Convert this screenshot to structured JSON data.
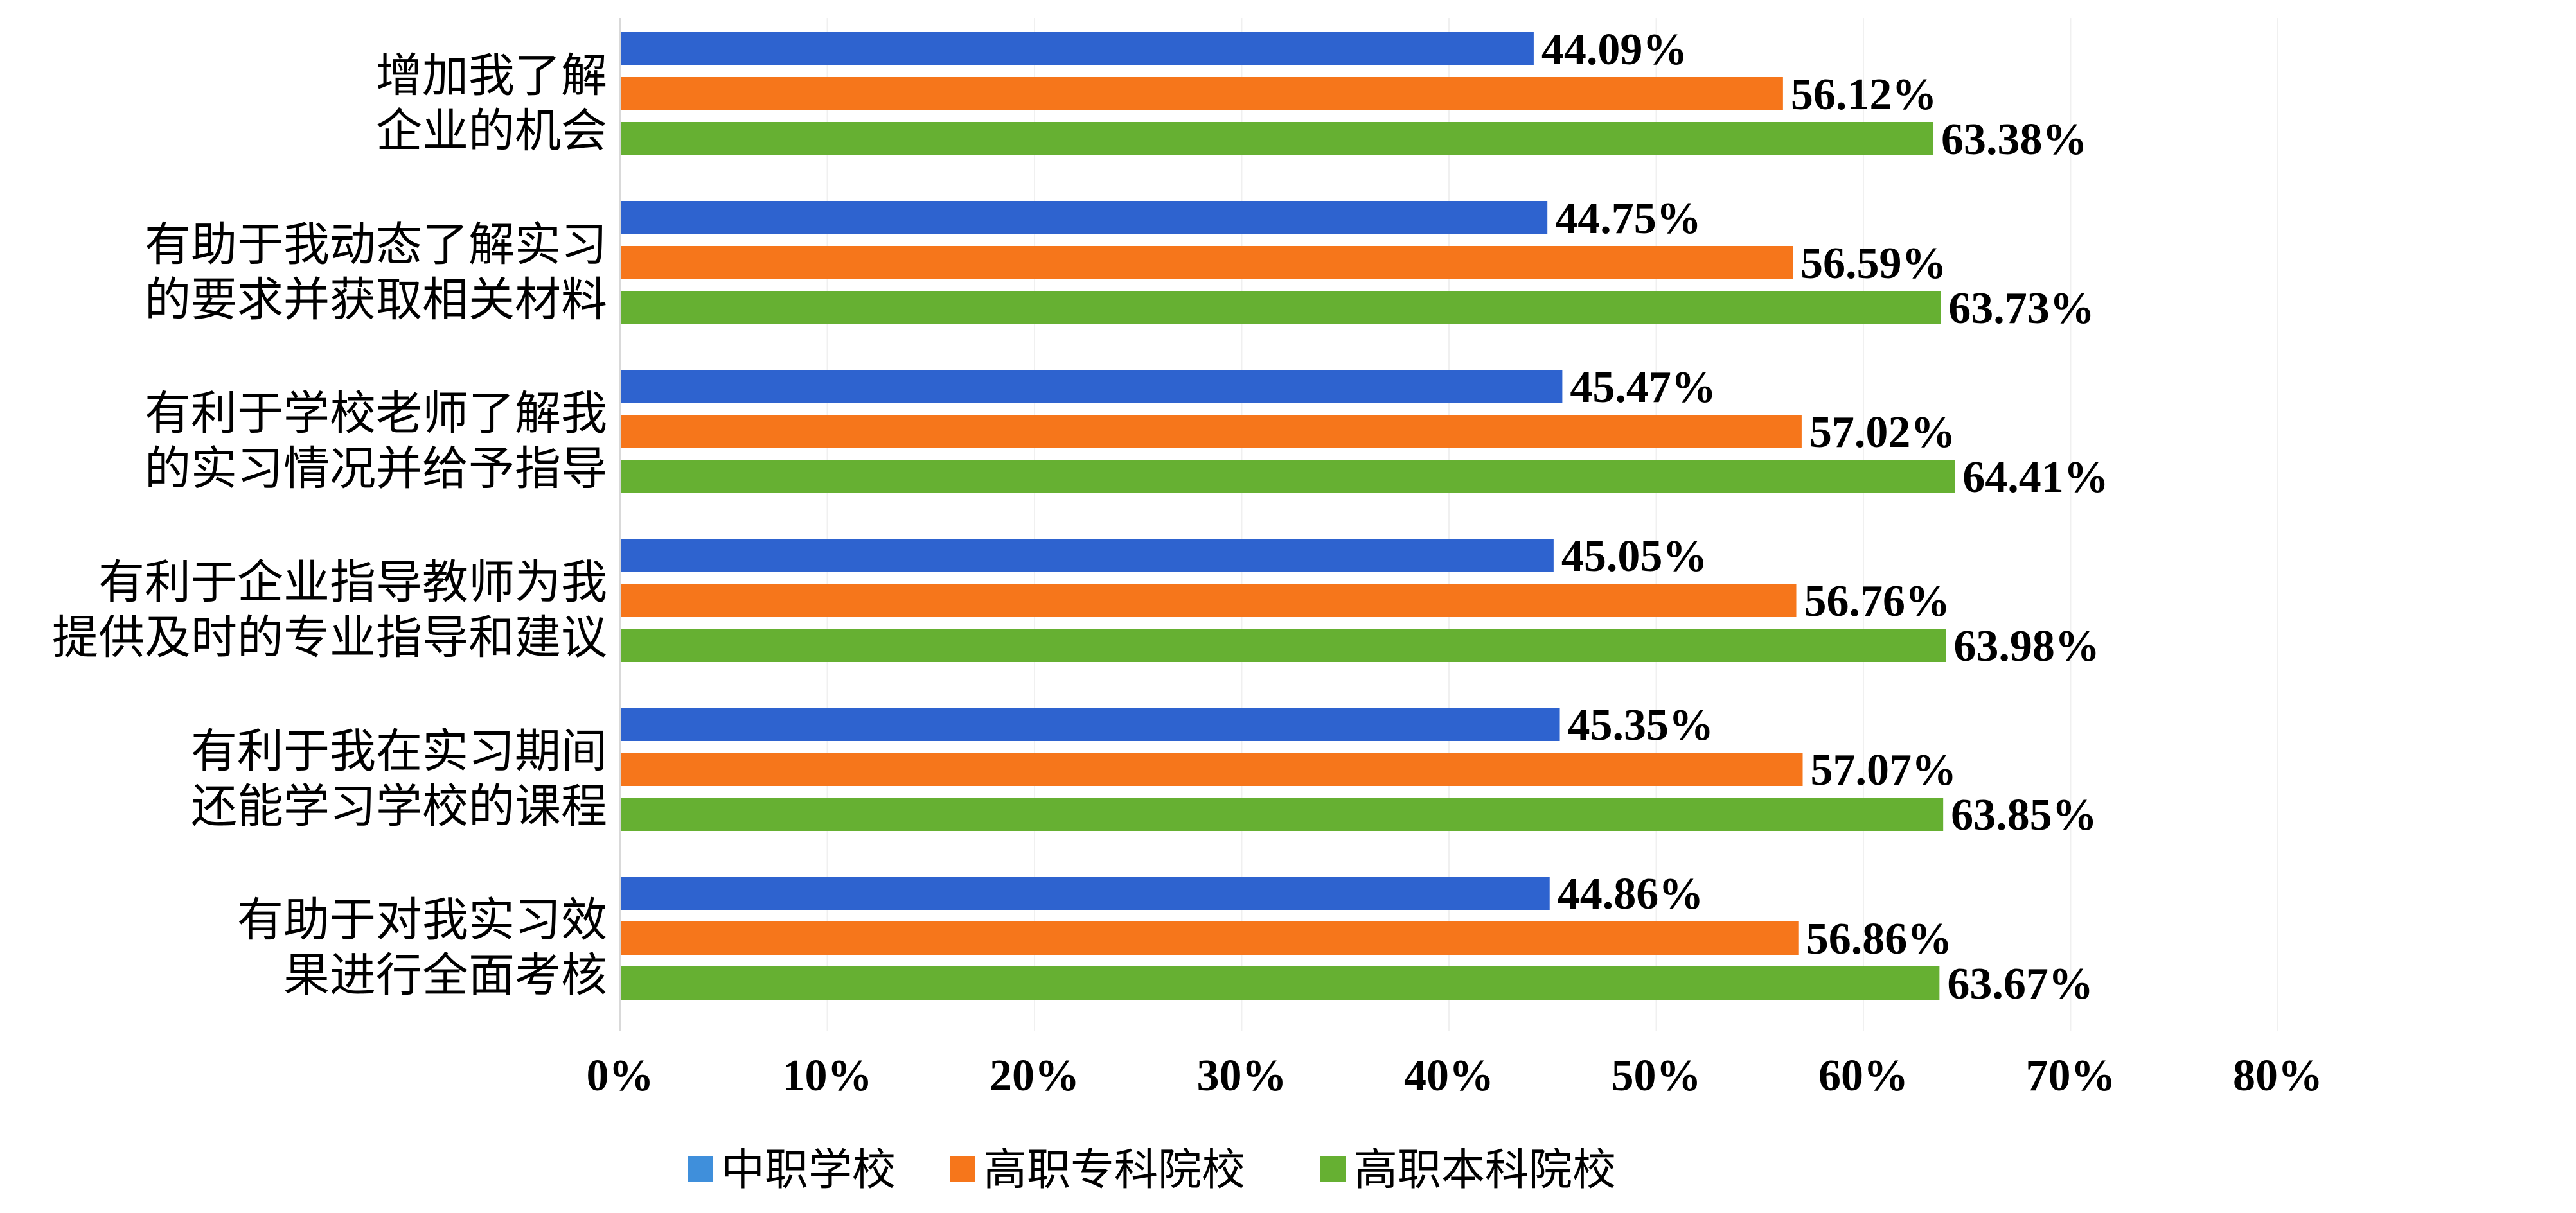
{
  "chart_data": {
    "type": "bar",
    "orientation": "horizontal",
    "categories": [
      [
        "增加我了解",
        "企业的机会"
      ],
      [
        "有助于我动态了解实习",
        "的要求并获取相关材料"
      ],
      [
        "有利于学校老师了解我",
        "的实习情况并给予指导"
      ],
      [
        "有利于企业指导教师为我",
        "提供及时的专业指导和建议"
      ],
      [
        "有利于我在实习期间",
        "还能学习学校的课程"
      ],
      [
        "有助于对我实习效",
        "果进行全面考核"
      ]
    ],
    "series": [
      {
        "name": "中职学校",
        "color": "#2E63CF",
        "legend_color": "#3F8FDB",
        "values": [
          44.09,
          44.75,
          45.47,
          45.05,
          45.35,
          44.86
        ]
      },
      {
        "name": "高职专科院校",
        "color": "#F6761B",
        "legend_color": "#F6761B",
        "values": [
          56.12,
          56.59,
          57.02,
          56.76,
          57.07,
          56.86
        ]
      },
      {
        "name": "高职本科院校",
        "color": "#66B032",
        "legend_color": "#66B032",
        "values": [
          63.38,
          63.73,
          64.41,
          63.98,
          63.85,
          63.67
        ]
      }
    ],
    "value_labels": [
      [
        "44.09%",
        "44.75%",
        "45.47%",
        "45.05%",
        "45.35%",
        "44.86%"
      ],
      [
        "56.12%",
        "56.59%",
        "57.02%",
        "56.76%",
        "57.07%",
        "56.86%"
      ],
      [
        "63.38%",
        "63.73%",
        "64.41%",
        "63.98%",
        "63.85%",
        "63.67%"
      ]
    ],
    "x_ticks": [
      "0%",
      "10%",
      "20%",
      "30%",
      "40%",
      "50%",
      "60%",
      "70%",
      "80%"
    ],
    "xlim": [
      0,
      80
    ],
    "grid": true,
    "legend_position": "bottom"
  }
}
